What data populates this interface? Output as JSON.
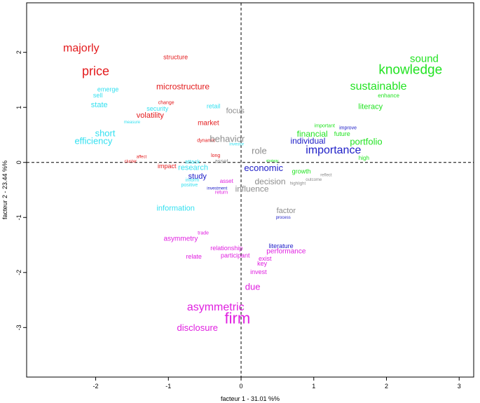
{
  "chart_data": {
    "type": "scatter",
    "title": "",
    "xlabel": "facteur  1  - 31.01 %%",
    "ylabel": "facteur  2 - 23.44 %%",
    "xlim": [
      -2.95,
      3.2
    ],
    "ylim": [
      -3.9,
      2.9
    ],
    "x_ticks": [
      -2,
      -1,
      0,
      1,
      2,
      3
    ],
    "y_ticks": [
      2,
      1,
      0,
      -1,
      -2,
      -3
    ],
    "reference_lines": {
      "x": 0,
      "y": 0,
      "style": "dashed"
    },
    "grid": false,
    "legend": "none",
    "series_colors": {
      "red": "#e31a1c",
      "cyan": "#33e0f0",
      "green": "#22e322",
      "blue": "#2020c8",
      "gray": "#8c8c8c",
      "magenta": "#e020e0"
    },
    "points": [
      {
        "label": "majorly",
        "x": -2.2,
        "y": 2.07,
        "group": "red",
        "size": 16
      },
      {
        "label": "price",
        "x": -2.0,
        "y": 1.66,
        "group": "red",
        "size": 18
      },
      {
        "label": "structure",
        "x": -0.9,
        "y": 1.91,
        "group": "red",
        "size": 9
      },
      {
        "label": "microstructure",
        "x": -0.8,
        "y": 1.38,
        "group": "red",
        "size": 12
      },
      {
        "label": "change",
        "x": -1.03,
        "y": 1.08,
        "group": "red",
        "size": 7
      },
      {
        "label": "volatility",
        "x": -1.25,
        "y": 0.85,
        "group": "red",
        "size": 11
      },
      {
        "label": "market",
        "x": -0.45,
        "y": 0.71,
        "group": "red",
        "size": 10
      },
      {
        "label": "dynamic",
        "x": -0.48,
        "y": 0.39,
        "group": "red",
        "size": 7
      },
      {
        "label": "affect",
        "x": -1.37,
        "y": 0.09,
        "group": "red",
        "size": 6
      },
      {
        "label": "cluster",
        "x": -1.52,
        "y": 0.01,
        "group": "red",
        "size": 6
      },
      {
        "label": "impact",
        "x": -1.02,
        "y": -0.07,
        "group": "red",
        "size": 9
      },
      {
        "label": "long",
        "x": -0.35,
        "y": 0.12,
        "group": "red",
        "size": 7
      },
      {
        "label": "emerge",
        "x": -1.83,
        "y": 1.33,
        "group": "cyan",
        "size": 9
      },
      {
        "label": "sell",
        "x": -1.97,
        "y": 1.22,
        "group": "cyan",
        "size": 9
      },
      {
        "label": "state",
        "x": -1.95,
        "y": 1.04,
        "group": "cyan",
        "size": 11
      },
      {
        "label": "security",
        "x": -1.15,
        "y": 0.98,
        "group": "cyan",
        "size": 9
      },
      {
        "label": "retail",
        "x": -0.38,
        "y": 1.02,
        "group": "cyan",
        "size": 9
      },
      {
        "label": "measure",
        "x": -1.5,
        "y": 0.72,
        "group": "cyan",
        "size": 6
      },
      {
        "label": "short",
        "x": -1.87,
        "y": 0.53,
        "group": "cyan",
        "size": 13
      },
      {
        "label": "efficiency",
        "x": -2.03,
        "y": 0.39,
        "group": "cyan",
        "size": 13
      },
      {
        "label": "investor",
        "x": -0.06,
        "y": 0.32,
        "group": "cyan",
        "size": 6
      },
      {
        "label": "attack",
        "x": -0.67,
        "y": 0.01,
        "group": "cyan",
        "size": 8
      },
      {
        "label": "research",
        "x": -0.66,
        "y": -0.1,
        "group": "cyan",
        "size": 11
      },
      {
        "label": "inform",
        "x": -0.67,
        "y": -0.33,
        "group": "cyan",
        "size": 7
      },
      {
        "label": "positive",
        "x": -0.71,
        "y": -0.42,
        "group": "cyan",
        "size": 7
      },
      {
        "label": "information",
        "x": -0.9,
        "y": -0.84,
        "group": "cyan",
        "size": 11
      },
      {
        "label": "focus",
        "x": -0.08,
        "y": 0.93,
        "group": "gray",
        "size": 11
      },
      {
        "label": "behavior",
        "x": -0.19,
        "y": 0.43,
        "group": "gray",
        "size": 13
      },
      {
        "label": "role",
        "x": 0.25,
        "y": 0.21,
        "group": "gray",
        "size": 13
      },
      {
        "label": "asset",
        "x": -0.27,
        "y": 0.02,
        "group": "gray",
        "size": 8
      },
      {
        "label": "decision",
        "x": 0.4,
        "y": -0.35,
        "group": "gray",
        "size": 12
      },
      {
        "label": "highlight",
        "x": 0.78,
        "y": -0.39,
        "group": "gray",
        "size": 6
      },
      {
        "label": "outcome",
        "x": 1.0,
        "y": -0.32,
        "group": "gray",
        "size": 6
      },
      {
        "label": "reflect",
        "x": 1.17,
        "y": -0.24,
        "group": "gray",
        "size": 6
      },
      {
        "label": "influence",
        "x": 0.15,
        "y": -0.48,
        "group": "gray",
        "size": 12
      },
      {
        "label": "factor",
        "x": 0.62,
        "y": -0.88,
        "group": "gray",
        "size": 11
      },
      {
        "label": "study",
        "x": -0.6,
        "y": -0.26,
        "group": "blue",
        "size": 11
      },
      {
        "label": "investment",
        "x": -0.33,
        "y": -0.48,
        "group": "blue",
        "size": 6
      },
      {
        "label": "economic",
        "x": 0.31,
        "y": -0.1,
        "group": "blue",
        "size": 13
      },
      {
        "label": "individual",
        "x": 0.92,
        "y": 0.39,
        "group": "blue",
        "size": 12
      },
      {
        "label": "importance",
        "x": 1.27,
        "y": 0.22,
        "group": "blue",
        "size": 16
      },
      {
        "label": "improve",
        "x": 1.47,
        "y": 0.62,
        "group": "blue",
        "size": 7
      },
      {
        "label": "process",
        "x": 0.58,
        "y": -1.01,
        "group": "blue",
        "size": 6
      },
      {
        "label": "literature",
        "x": 0.55,
        "y": -1.52,
        "group": "blue",
        "size": 9
      },
      {
        "label": "sound",
        "x": 2.52,
        "y": 1.88,
        "group": "green",
        "size": 15
      },
      {
        "label": "knowledge",
        "x": 2.33,
        "y": 1.68,
        "group": "green",
        "size": 19
      },
      {
        "label": "sustainable",
        "x": 1.89,
        "y": 1.38,
        "group": "green",
        "size": 16
      },
      {
        "label": "enhance",
        "x": 2.03,
        "y": 1.21,
        "group": "green",
        "size": 8
      },
      {
        "label": "literacy",
        "x": 1.78,
        "y": 1.01,
        "group": "green",
        "size": 11
      },
      {
        "label": "important",
        "x": 1.15,
        "y": 0.66,
        "group": "green",
        "size": 7
      },
      {
        "label": "financial",
        "x": 0.98,
        "y": 0.52,
        "group": "green",
        "size": 12
      },
      {
        "label": "future",
        "x": 1.39,
        "y": 0.52,
        "group": "green",
        "size": 9
      },
      {
        "label": "portfolio",
        "x": 1.72,
        "y": 0.38,
        "group": "green",
        "size": 13
      },
      {
        "label": "high",
        "x": 1.69,
        "y": 0.08,
        "group": "green",
        "size": 8
      },
      {
        "label": "strategy",
        "x": 0.43,
        "y": 0.02,
        "group": "green",
        "size": 5
      },
      {
        "label": "growth",
        "x": 0.83,
        "y": -0.16,
        "group": "green",
        "size": 9
      },
      {
        "label": "asset",
        "x": -0.2,
        "y": -0.34,
        "group": "magenta",
        "size": 8
      },
      {
        "label": "return",
        "x": -0.27,
        "y": -0.55,
        "group": "magenta",
        "size": 7
      },
      {
        "label": "trade",
        "x": -0.52,
        "y": -1.29,
        "group": "magenta",
        "size": 7
      },
      {
        "label": "asymmetry",
        "x": -0.83,
        "y": -1.39,
        "group": "magenta",
        "size": 10
      },
      {
        "label": "relationship",
        "x": -0.2,
        "y": -1.56,
        "group": "magenta",
        "size": 9
      },
      {
        "label": "relate",
        "x": -0.65,
        "y": -1.71,
        "group": "magenta",
        "size": 9
      },
      {
        "label": "participant",
        "x": -0.08,
        "y": -1.69,
        "group": "magenta",
        "size": 9
      },
      {
        "label": "performance",
        "x": 0.62,
        "y": -1.62,
        "group": "magenta",
        "size": 10
      },
      {
        "label": "exist",
        "x": 0.33,
        "y": -1.75,
        "group": "magenta",
        "size": 9
      },
      {
        "label": "key",
        "x": 0.29,
        "y": -1.84,
        "group": "magenta",
        "size": 9
      },
      {
        "label": "invest",
        "x": 0.24,
        "y": -1.99,
        "group": "magenta",
        "size": 9
      },
      {
        "label": "due",
        "x": 0.16,
        "y": -2.26,
        "group": "magenta",
        "size": 13
      },
      {
        "label": "asymmetric",
        "x": -0.35,
        "y": -2.63,
        "group": "magenta",
        "size": 16
      },
      {
        "label": "firm",
        "x": -0.05,
        "y": -2.83,
        "group": "magenta",
        "size": 22
      },
      {
        "label": "disclosure",
        "x": -0.6,
        "y": -3.0,
        "group": "magenta",
        "size": 13
      }
    ]
  }
}
